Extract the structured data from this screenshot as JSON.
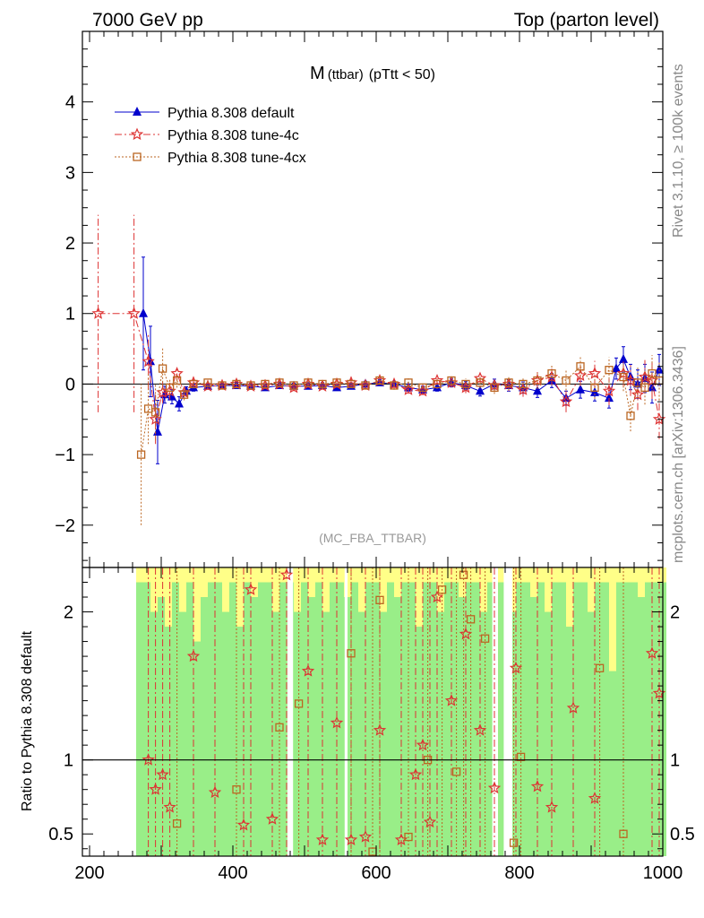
{
  "header": {
    "left": "7000 GeV pp",
    "right": "Top (parton level)"
  },
  "side_labels": {
    "rivet": "Rivet 3.1.10, ≥ 100k events",
    "mcplots": "mcplots.cern.ch [arXiv:1306.3436]"
  },
  "colors": {
    "default": "#0000cc",
    "tune4c": "#dd3333",
    "tune4cx": "#bb6622",
    "band_inner": "#99ee88",
    "band_outer": "#ffff88"
  },
  "chart_data": [
    {
      "type": "line",
      "title": "M",
      "title_sub": "(ttbar)",
      "title_tail": "(pTtt < 50)",
      "analysis_label": "(MC_FBA_TTBAR)",
      "xlim": [
        190,
        1000
      ],
      "ylim": [
        -2.6,
        5.0
      ],
      "yticks": [
        -2,
        -1,
        0,
        1,
        2,
        3,
        4
      ],
      "ytick_labels": [
        "−2",
        "−1",
        "0",
        "1",
        "2",
        "3",
        "4"
      ],
      "legend_position": "top-left",
      "series": [
        {
          "name": "Pythia 8.308 default",
          "marker": "triangle",
          "style": "solid",
          "x": [
            275,
            285,
            295,
            305,
            315,
            325,
            335,
            345,
            365,
            385,
            405,
            425,
            445,
            465,
            485,
            505,
            525,
            545,
            565,
            585,
            605,
            625,
            645,
            665,
            685,
            705,
            725,
            745,
            765,
            785,
            805,
            825,
            845,
            865,
            885,
            905,
            925,
            935,
            945,
            955,
            965,
            975,
            985,
            995
          ],
          "y": [
            1.0,
            0.32,
            -0.68,
            -0.15,
            -0.18,
            -0.28,
            -0.1,
            -0.05,
            -0.03,
            -0.02,
            -0.02,
            -0.03,
            -0.05,
            -0.02,
            -0.03,
            -0.03,
            -0.02,
            -0.05,
            -0.03,
            0.0,
            0.02,
            0.0,
            -0.05,
            -0.08,
            -0.05,
            0.02,
            -0.02,
            -0.1,
            0.0,
            -0.02,
            -0.05,
            -0.1,
            0.05,
            -0.2,
            -0.08,
            -0.12,
            -0.2,
            0.22,
            0.35,
            0.1,
            0.0,
            0.08,
            -0.05,
            0.2
          ],
          "yerr": [
            0.8,
            0.5,
            0.45,
            0.12,
            0.1,
            0.1,
            0.06,
            0.05,
            0.04,
            0.04,
            0.04,
            0.04,
            0.04,
            0.04,
            0.04,
            0.04,
            0.04,
            0.04,
            0.04,
            0.04,
            0.04,
            0.04,
            0.05,
            0.05,
            0.05,
            0.06,
            0.06,
            0.07,
            0.07,
            0.08,
            0.08,
            0.09,
            0.1,
            0.1,
            0.12,
            0.12,
            0.14,
            0.15,
            0.18,
            0.18,
            0.2,
            0.2,
            0.22,
            0.22
          ]
        },
        {
          "name": "Pythia 8.308 tune-4c",
          "marker": "star",
          "style": "dashdot",
          "x": [
            212,
            262,
            282,
            292,
            302,
            312,
            322,
            332,
            345,
            365,
            385,
            405,
            425,
            445,
            465,
            485,
            505,
            525,
            545,
            565,
            585,
            605,
            625,
            645,
            665,
            685,
            705,
            725,
            745,
            765,
            785,
            805,
            825,
            845,
            865,
            885,
            905,
            925,
            945,
            955,
            965,
            975,
            985,
            995
          ],
          "y": [
            1.0,
            1.0,
            0.32,
            -0.5,
            -0.12,
            -0.1,
            0.15,
            -0.12,
            0.02,
            -0.03,
            -0.02,
            0.0,
            -0.03,
            -0.02,
            0.0,
            -0.05,
            0.0,
            -0.03,
            0.0,
            0.02,
            -0.02,
            0.05,
            0.0,
            -0.08,
            -0.1,
            0.05,
            0.02,
            -0.05,
            0.08,
            -0.02,
            0.0,
            -0.08,
            0.05,
            0.1,
            -0.25,
            0.12,
            0.15,
            -0.1,
            0.15,
            0.05,
            -0.15,
            0.1,
            0.05,
            -0.5
          ],
          "yerr": [
            1.4,
            1.4,
            0.4,
            0.35,
            0.15,
            0.12,
            0.1,
            0.08,
            0.05,
            0.05,
            0.05,
            0.05,
            0.05,
            0.05,
            0.05,
            0.05,
            0.05,
            0.05,
            0.05,
            0.05,
            0.05,
            0.05,
            0.06,
            0.06,
            0.06,
            0.07,
            0.07,
            0.08,
            0.08,
            0.09,
            0.1,
            0.1,
            0.12,
            0.12,
            0.15,
            0.15,
            0.18,
            0.2,
            0.2,
            0.22,
            0.22,
            0.24,
            0.26,
            0.28
          ]
        },
        {
          "name": "Pythia 8.308 tune-4cx",
          "marker": "square",
          "style": "dotted",
          "x": [
            272,
            282,
            292,
            302,
            312,
            322,
            332,
            345,
            365,
            385,
            405,
            425,
            445,
            465,
            485,
            505,
            525,
            545,
            565,
            585,
            605,
            625,
            645,
            665,
            685,
            705,
            725,
            745,
            765,
            785,
            805,
            825,
            845,
            865,
            885,
            905,
            925,
            945,
            955,
            965,
            975,
            985,
            995
          ],
          "y": [
            -1.0,
            -0.35,
            -0.4,
            0.22,
            -0.05,
            0.05,
            -0.15,
            0.0,
            0.02,
            -0.02,
            0.0,
            -0.02,
            0.0,
            0.02,
            -0.02,
            0.02,
            0.0,
            0.02,
            0.0,
            -0.02,
            0.05,
            -0.02,
            0.02,
            -0.05,
            0.0,
            0.05,
            0.0,
            0.02,
            -0.05,
            0.02,
            0.0,
            0.05,
            0.15,
            0.05,
            0.25,
            -0.05,
            0.2,
            0.1,
            -0.45,
            0.02,
            -0.05,
            0.15,
            0.05
          ],
          "yerr": [
            1.0,
            0.5,
            0.4,
            0.3,
            0.12,
            0.1,
            0.08,
            0.05,
            0.05,
            0.05,
            0.05,
            0.05,
            0.05,
            0.05,
            0.05,
            0.05,
            0.05,
            0.05,
            0.05,
            0.05,
            0.05,
            0.06,
            0.06,
            0.06,
            0.07,
            0.07,
            0.08,
            0.08,
            0.09,
            0.1,
            0.1,
            0.12,
            0.12,
            0.14,
            0.15,
            0.16,
            0.18,
            0.2,
            0.22,
            0.22,
            0.24,
            0.26,
            0.28
          ]
        }
      ]
    },
    {
      "type": "line",
      "ylabel": "Ratio to Pythia 8.308 default",
      "xlim": [
        190,
        1000
      ],
      "ylim": [
        0.35,
        2.3
      ],
      "yticks": [
        0.5,
        1,
        2
      ],
      "ytick_labels": [
        "0.5",
        "1",
        "2"
      ],
      "xticks": [
        200,
        400,
        600,
        800,
        1000
      ],
      "xtick_labels": [
        "200",
        "400",
        "600",
        "800",
        "1000"
      ],
      "reference": 1,
      "band_x": [
        270,
        280,
        290,
        300,
        310,
        320,
        330,
        340,
        350,
        360,
        370,
        380,
        390,
        400,
        410,
        420,
        430,
        440,
        450,
        460,
        470,
        480,
        490,
        500,
        510,
        520,
        530,
        540,
        550,
        560,
        570,
        580,
        590,
        600,
        610,
        620,
        630,
        640,
        650,
        660,
        670,
        680,
        690,
        700,
        710,
        720,
        730,
        740,
        750,
        760,
        770,
        780,
        790,
        800,
        810,
        820,
        830,
        840,
        850,
        860,
        870,
        880,
        890,
        900,
        910,
        920,
        930,
        940,
        950,
        960,
        970,
        980,
        990,
        1000
      ],
      "band_green_top": [
        2.2,
        2.2,
        2.0,
        2.1,
        1.9,
        2.2,
        2.0,
        2.2,
        1.8,
        2.1,
        2.2,
        2.2,
        2.0,
        2.2,
        1.9,
        2.2,
        2.1,
        2.2,
        2.2,
        2.0,
        2.2,
        2.2,
        2.0,
        2.2,
        2.1,
        2.2,
        2.0,
        2.2,
        2.2,
        2.1,
        2.2,
        2.0,
        2.2,
        2.2,
        2.0,
        2.2,
        2.1,
        2.2,
        2.2,
        1.9,
        2.2,
        2.2,
        2.0,
        2.2,
        2.2,
        2.1,
        2.2,
        2.2,
        2.0,
        2.2,
        2.2,
        2.2,
        2.0,
        2.2,
        2.2,
        2.1,
        2.2,
        2.0,
        2.2,
        2.2,
        1.9,
        2.2,
        2.2,
        2.0,
        2.2,
        2.2,
        1.6,
        2.2,
        2.2,
        2.2,
        2.1,
        2.2,
        2.2,
        2.2
      ],
      "band_gaps": [
        [
          476,
          484
        ],
        [
          556,
          560
        ],
        [
          762,
          770
        ],
        [
          778,
          790
        ]
      ],
      "series": [
        {
          "name": "Pythia 8.308 tune-4c",
          "marker": "star",
          "x": [
            282,
            292,
            302,
            312,
            345,
            375,
            415,
            425,
            455,
            475,
            505,
            525,
            545,
            565,
            585,
            605,
            635,
            655,
            665,
            675,
            685,
            705,
            725,
            745,
            765,
            795,
            825,
            845,
            875,
            905,
            985,
            995
          ],
          "y": [
            1.0,
            0.8,
            0.9,
            0.68,
            1.7,
            0.78,
            0.56,
            2.15,
            0.6,
            2.25,
            1.6,
            0.46,
            1.25,
            0.46,
            0.48,
            1.2,
            0.46,
            0.9,
            1.1,
            0.58,
            2.1,
            1.4,
            1.85,
            1.2,
            0.81,
            1.62,
            0.82,
            0.68,
            1.35,
            0.74,
            1.72,
            1.45
          ]
        },
        {
          "name": "Pythia 8.308 tune-4cx",
          "marker": "square",
          "x": [
            322,
            405,
            465,
            492,
            565,
            595,
            605,
            645,
            672,
            692,
            712,
            722,
            732,
            752,
            792,
            802,
            912,
            945
          ],
          "y": [
            0.57,
            0.8,
            1.22,
            1.38,
            1.72,
            0.38,
            2.08,
            0.48,
            1.0,
            2.15,
            0.92,
            2.25,
            1.95,
            1.82,
            0.44,
            1.02,
            1.62,
            0.5
          ]
        }
      ]
    }
  ]
}
